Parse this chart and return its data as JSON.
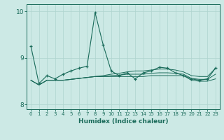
{
  "xlabel": "Humidex (Indice chaleur)",
  "xlim": [
    -0.5,
    23.5
  ],
  "ylim": [
    7.9,
    10.15
  ],
  "yticks": [
    8,
    9,
    10
  ],
  "xticks": [
    0,
    1,
    2,
    3,
    4,
    5,
    6,
    7,
    8,
    9,
    10,
    11,
    12,
    13,
    14,
    15,
    16,
    17,
    18,
    19,
    20,
    21,
    22,
    23
  ],
  "bg_color": "#cce9e5",
  "line_color": "#1a6b5a",
  "grid_color": "#afd4cf",
  "main_line": [
    9.25,
    8.45,
    8.62,
    8.55,
    8.65,
    8.72,
    8.78,
    8.82,
    9.97,
    9.28,
    8.72,
    8.62,
    8.68,
    8.55,
    8.68,
    8.72,
    8.8,
    8.78,
    8.68,
    8.62,
    8.55,
    8.52,
    8.55,
    8.78
  ],
  "upper_line": [
    8.52,
    8.42,
    8.52,
    8.52,
    8.52,
    8.54,
    8.56,
    8.58,
    8.6,
    8.62,
    8.65,
    8.67,
    8.7,
    8.72,
    8.72,
    8.74,
    8.76,
    8.76,
    8.74,
    8.7,
    8.62,
    8.6,
    8.6,
    8.78
  ],
  "mid_line": [
    8.52,
    8.42,
    8.52,
    8.52,
    8.52,
    8.54,
    8.56,
    8.58,
    8.6,
    8.6,
    8.62,
    8.63,
    8.65,
    8.65,
    8.65,
    8.67,
    8.68,
    8.68,
    8.67,
    8.65,
    8.56,
    8.54,
    8.54,
    8.65
  ],
  "lower_line": [
    8.52,
    8.42,
    8.52,
    8.52,
    8.52,
    8.54,
    8.56,
    8.58,
    8.6,
    8.6,
    8.6,
    8.6,
    8.6,
    8.6,
    8.6,
    8.62,
    8.62,
    8.62,
    8.62,
    8.62,
    8.52,
    8.5,
    8.5,
    8.55
  ]
}
